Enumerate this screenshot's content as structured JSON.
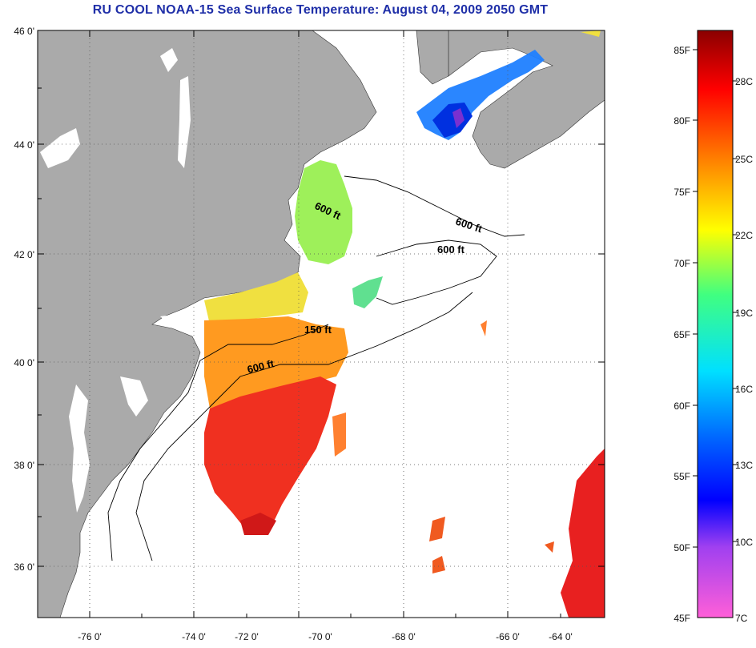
{
  "title": "RU COOL  NOAA-15  Sea Surface Temperature:  August 04, 2009 2050 GMT",
  "map": {
    "lat_labels": [
      "46 0'",
      "44 0'",
      "42 0'",
      "40 0'",
      "38 0'",
      "36 0'"
    ],
    "lon_labels": [
      "-76 0'",
      "-74 0'",
      "-72 0'",
      "-70 0'",
      "-68 0'",
      "-66 0'",
      "-64 0'"
    ],
    "contour_labels": [
      {
        "text": "600 ft",
        "region": "gulf-of-maine-west"
      },
      {
        "text": "600 ft",
        "region": "gulf-of-maine-east"
      },
      {
        "text": "600 ft",
        "region": "georges-bank"
      },
      {
        "text": "150 ft",
        "region": "nantucket-shoals"
      },
      {
        "text": "600 ft",
        "region": "shelf-break"
      }
    ],
    "colors": {
      "land": "#aaaaaa",
      "ocean_nodata": "#ffffff",
      "grid": "#555555"
    }
  },
  "colorbar": {
    "fahrenheit_labels": [
      "85F",
      "80F",
      "75F",
      "70F",
      "65F",
      "60F",
      "55F",
      "50F",
      "45F"
    ],
    "celsius_labels": [
      "28C",
      "25C",
      "22C",
      "19C",
      "16C",
      "13C",
      "10C",
      "7C"
    ],
    "gradient_stops": [
      "#ff5fd8",
      "#a040f0",
      "#0000ff",
      "#0060ff",
      "#00e0ff",
      "#40ff80",
      "#ffff00",
      "#ff8000",
      "#ff0000",
      "#8a0000"
    ]
  }
}
